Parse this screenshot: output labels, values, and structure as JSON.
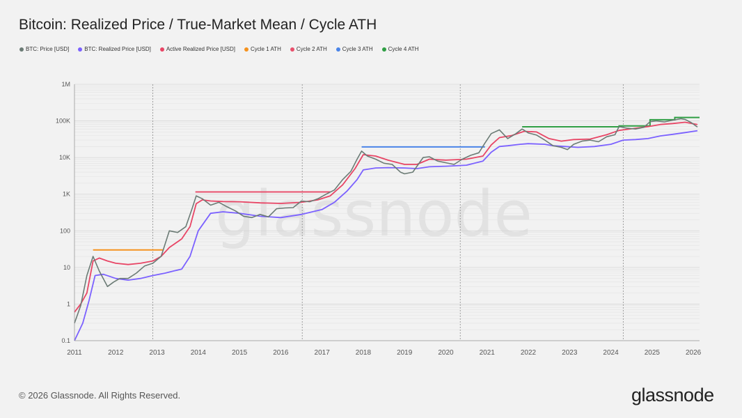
{
  "title": "Bitcoin: Realized Price / True-Market Mean / Cycle ATH",
  "footer": "© 2026 Glassnode. All Rights Reserved.",
  "brand": "glassnode",
  "watermark": "glassnode",
  "colors": {
    "background": "#f2f2f2",
    "price": "#6b7b75",
    "realized": "#7b61ff",
    "active_realized": "#e84565",
    "cycle1_ath": "#f5921e",
    "cycle2_ath": "#e8506c",
    "cycle3_ath": "#4a84e8",
    "cycle4_ath": "#2f9e44"
  },
  "legend": [
    {
      "label": "BTC: Price [USD]",
      "color": "#6b7b75"
    },
    {
      "label": "BTC: Realized Price [USD]",
      "color": "#7b61ff"
    },
    {
      "label": "Active Realized Price [USD]",
      "color": "#e84565"
    },
    {
      "label": "Cycle 1 ATH",
      "color": "#f5921e"
    },
    {
      "label": "Cycle 2 ATH",
      "color": "#e8506c"
    },
    {
      "label": "Cycle 3 ATH",
      "color": "#4a84e8"
    },
    {
      "label": "Cycle 4 ATH",
      "color": "#2f9e44"
    }
  ],
  "chart_data": {
    "type": "line",
    "yscale": "log",
    "xlim": [
      2011.0,
      2026.15
    ],
    "ylim": [
      0.1,
      1000000
    ],
    "y_ticks": [
      0.1,
      1,
      10,
      100,
      1000,
      10000,
      100000,
      1000000
    ],
    "y_tick_labels": [
      "0.1",
      "1",
      "10",
      "100",
      "1K",
      "10K",
      "100K",
      "1M"
    ],
    "x_ticks": [
      2011,
      2012,
      2013,
      2014,
      2015,
      2016,
      2017,
      2018,
      2019,
      2020,
      2021,
      2022,
      2023,
      2024,
      2025,
      2026
    ],
    "x_tick_labels": [
      "2011",
      "2012",
      "2013",
      "2014",
      "2015",
      "2016",
      "2017",
      "2018",
      "2019",
      "2020",
      "2021",
      "2022",
      "2023",
      "2024",
      "2025",
      "2026"
    ],
    "halvings": [
      2012.9,
      2016.52,
      2020.35,
      2024.3
    ],
    "series": [
      {
        "name": "BTC: Price [USD]",
        "key": "price",
        "x": [
          2011.0,
          2011.15,
          2011.3,
          2011.45,
          2011.6,
          2011.8,
          2011.95,
          2012.1,
          2012.3,
          2012.5,
          2012.7,
          2012.9,
          2013.1,
          2013.3,
          2013.5,
          2013.7,
          2013.85,
          2013.95,
          2014.1,
          2014.3,
          2014.5,
          2014.7,
          2014.9,
          2015.1,
          2015.3,
          2015.5,
          2015.7,
          2015.9,
          2016.1,
          2016.3,
          2016.5,
          2016.7,
          2016.9,
          2017.1,
          2017.3,
          2017.5,
          2017.7,
          2017.85,
          2017.96,
          2018.1,
          2018.3,
          2018.5,
          2018.7,
          2018.9,
          2019.0,
          2019.2,
          2019.45,
          2019.6,
          2019.8,
          2020.0,
          2020.2,
          2020.4,
          2020.6,
          2020.8,
          2020.95,
          2021.1,
          2021.3,
          2021.5,
          2021.7,
          2021.85,
          2022.0,
          2022.2,
          2022.4,
          2022.6,
          2022.8,
          2022.95,
          2023.1,
          2023.3,
          2023.5,
          2023.7,
          2023.9,
          2024.1,
          2024.2,
          2024.4,
          2024.6,
          2024.8,
          2024.95,
          2025.1,
          2025.3,
          2025.5,
          2025.7,
          2025.8,
          2025.95,
          2026.1
        ],
        "y": [
          0.3,
          0.9,
          6,
          20,
          8,
          3,
          4,
          5,
          5,
          7,
          11,
          13,
          20,
          100,
          90,
          130,
          400,
          900,
          750,
          500,
          600,
          450,
          350,
          250,
          230,
          280,
          240,
          400,
          420,
          430,
          650,
          620,
          750,
          1000,
          1300,
          2500,
          4200,
          9000,
          15000,
          11000,
          9000,
          7000,
          6500,
          4000,
          3600,
          4000,
          10000,
          10500,
          8000,
          7200,
          6500,
          9000,
          11500,
          13500,
          25000,
          45000,
          57000,
          33000,
          45000,
          60000,
          47000,
          41000,
          30000,
          21000,
          19000,
          16500,
          23000,
          28000,
          30000,
          27000,
          37000,
          42000,
          70000,
          63000,
          60000,
          67000,
          95000,
          100000,
          94000,
          105000,
          115000,
          110000,
          90000,
          68000
        ]
      },
      {
        "name": "BTC: Realized Price [USD]",
        "key": "realized",
        "x": [
          2011.0,
          2011.2,
          2011.35,
          2011.5,
          2011.7,
          2012.0,
          2012.3,
          2012.6,
          2012.9,
          2013.2,
          2013.4,
          2013.6,
          2013.8,
          2014.0,
          2014.3,
          2014.6,
          2015.0,
          2015.5,
          2016.0,
          2016.5,
          2017.0,
          2017.3,
          2017.6,
          2017.85,
          2018.0,
          2018.3,
          2018.6,
          2019.0,
          2019.3,
          2019.6,
          2020.0,
          2020.5,
          2020.9,
          2021.1,
          2021.3,
          2021.5,
          2021.8,
          2022.0,
          2022.4,
          2022.6,
          2022.9,
          2023.2,
          2023.6,
          2024.0,
          2024.3,
          2024.6,
          2024.9,
          2025.2,
          2025.5,
          2025.8,
          2026.1
        ],
        "y": [
          0.1,
          0.3,
          1.2,
          6,
          6.5,
          5,
          4.5,
          5,
          6,
          7,
          8,
          9,
          20,
          100,
          300,
          330,
          300,
          250,
          230,
          280,
          380,
          600,
          1200,
          2500,
          4600,
          5200,
          5300,
          5200,
          5000,
          5600,
          5800,
          6200,
          8000,
          14000,
          20000,
          21000,
          23000,
          24000,
          23000,
          21000,
          20000,
          19000,
          20000,
          23000,
          30000,
          31000,
          33000,
          39000,
          43000,
          48000,
          54000
        ]
      },
      {
        "name": "Active Realized Price [USD]",
        "key": "active_realized",
        "x": [
          2011.0,
          2011.15,
          2011.3,
          2011.45,
          2011.6,
          2011.8,
          2012.0,
          2012.3,
          2012.6,
          2012.9,
          2013.1,
          2013.3,
          2013.6,
          2013.8,
          2013.95,
          2014.1,
          2014.3,
          2014.6,
          2015.0,
          2015.5,
          2016.0,
          2016.5,
          2016.9,
          2017.2,
          2017.5,
          2017.8,
          2018.0,
          2018.3,
          2018.6,
          2019.0,
          2019.3,
          2019.6,
          2020.0,
          2020.5,
          2020.9,
          2021.1,
          2021.3,
          2021.6,
          2021.9,
          2022.2,
          2022.5,
          2022.8,
          2023.1,
          2023.5,
          2023.9,
          2024.2,
          2024.5,
          2024.9,
          2025.2,
          2025.5,
          2025.8,
          2026.1
        ],
        "y": [
          0.6,
          1.0,
          2.0,
          15,
          18,
          15,
          13,
          12,
          13,
          15,
          20,
          35,
          60,
          130,
          550,
          700,
          650,
          630,
          620,
          580,
          560,
          600,
          700,
          900,
          1800,
          5000,
          12000,
          11000,
          8500,
          6500,
          6500,
          9000,
          8500,
          9000,
          11000,
          22000,
          35000,
          40000,
          52000,
          50000,
          33000,
          28000,
          31000,
          32000,
          42000,
          55000,
          61000,
          70000,
          80000,
          85000,
          92000,
          80000
        ]
      }
    ],
    "ath_lines": [
      {
        "name": "Cycle 1 ATH",
        "key": "cycle1_ath",
        "x_start": 2011.45,
        "x_end": 2013.15,
        "value": 30
      },
      {
        "name": "Cycle 2 ATH",
        "key": "cycle2_ath",
        "x_start": 2013.93,
        "x_end": 2017.2,
        "value": 1150
      },
      {
        "name": "Cycle 3 ATH",
        "key": "cycle3_ath",
        "x_start": 2017.96,
        "x_end": 2020.95,
        "value": 19500
      },
      {
        "name": "Cycle 4 ATH",
        "key": "cycle4_ath",
        "x_start": 2021.85,
        "x_end": 2026.15,
        "value": 69000
      }
    ],
    "cycle4_ath_steps": [
      {
        "x": 2021.85,
        "value": 69000
      },
      {
        "x": 2024.2,
        "value": 73000
      },
      {
        "x": 2024.95,
        "value": 108000
      },
      {
        "x": 2025.55,
        "value": 124000
      }
    ]
  }
}
